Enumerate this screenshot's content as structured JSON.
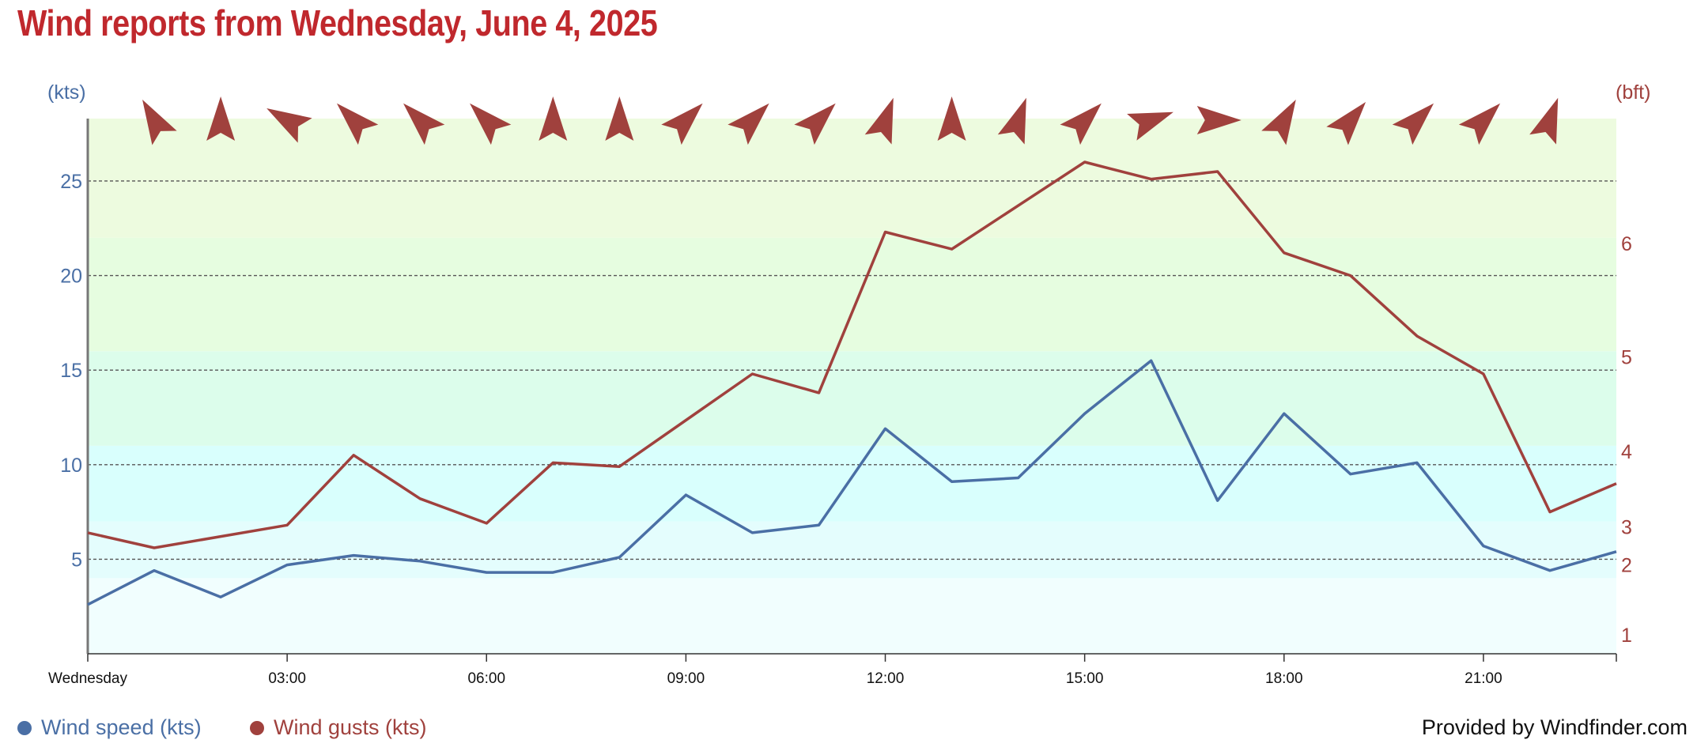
{
  "title": "Wind reports from Wednesday, June 4, 2025",
  "footer": {
    "provider": "Provided by Windfinder.com"
  },
  "legend": {
    "speed_label": "Wind speed (kts)",
    "gusts_label": "Wind gusts (kts)"
  },
  "colors": {
    "title": "#c0282d",
    "speed": "#4a6fa5",
    "gusts": "#a0413d",
    "band_bft1": "#f1fefe",
    "band_bft2": "#e4fdfd",
    "band_bft3": "#d9fffd",
    "band_bft4": "#dcfdeb",
    "band_bft5": "#e6fde0",
    "band_bft6": "#edfbdf"
  },
  "chart_data": {
    "type": "line",
    "x": [
      "00:00",
      "01:00",
      "02:00",
      "03:00",
      "04:00",
      "05:00",
      "06:00",
      "07:00",
      "08:00",
      "09:00",
      "10:00",
      "11:00",
      "12:00",
      "13:00",
      "14:00",
      "15:00",
      "16:00",
      "17:00",
      "18:00",
      "19:00",
      "20:00",
      "21:00",
      "22:00",
      "23:00"
    ],
    "series": [
      {
        "name": "Wind speed (kts)",
        "values": [
          2.6,
          4.4,
          3.0,
          4.7,
          5.2,
          4.9,
          4.3,
          4.3,
          5.1,
          8.4,
          6.4,
          6.8,
          11.9,
          9.1,
          9.3,
          12.7,
          15.5,
          8.1,
          12.7,
          9.5,
          10.1,
          5.7,
          4.4,
          5.4
        ]
      },
      {
        "name": "Wind gusts (kts)",
        "values": [
          6.4,
          5.6,
          6.2,
          6.8,
          10.5,
          8.2,
          6.9,
          10.1,
          9.9,
          null,
          14.8,
          13.8,
          22.3,
          21.4,
          null,
          26.0,
          25.1,
          25.5,
          21.2,
          20.0,
          16.8,
          14.8,
          7.5,
          9.0
        ]
      }
    ],
    "gust_line_points": [
      {
        "x": "00:00",
        "y": 6.4
      },
      {
        "x": "01:00",
        "y": 5.6
      },
      {
        "x": "03:00",
        "y": 6.8
      },
      {
        "x": "04:00",
        "y": 10.5
      },
      {
        "x": "05:00",
        "y": 8.2
      },
      {
        "x": "06:00",
        "y": 6.9
      },
      {
        "x": "07:00",
        "y": 10.1
      },
      {
        "x": "08:00",
        "y": 9.9
      },
      {
        "x": "10:00",
        "y": 14.8
      },
      {
        "x": "11:00",
        "y": 13.8
      },
      {
        "x": "12:00",
        "y": 22.3
      },
      {
        "x": "13:00",
        "y": 21.4
      },
      {
        "x": "15:00",
        "y": 26.0
      },
      {
        "x": "16:00",
        "y": 25.1
      },
      {
        "x": "17:00",
        "y": 25.5
      },
      {
        "x": "18:00",
        "y": 21.2
      },
      {
        "x": "19:00",
        "y": 20.0
      },
      {
        "x": "20:00",
        "y": 16.8
      },
      {
        "x": "21:00",
        "y": 14.8
      },
      {
        "x": "22:00",
        "y": 7.5
      },
      {
        "x": "23:00",
        "y": 9.0
      }
    ],
    "direction_degrees": [
      330,
      0,
      300,
      315,
      315,
      315,
      0,
      0,
      45,
      45,
      45,
      20,
      0,
      20,
      45,
      70,
      90,
      30,
      40,
      45,
      45,
      20
    ],
    "direction_hours": [
      1,
      2,
      3,
      4,
      5,
      6,
      7,
      8,
      9,
      10,
      11,
      12,
      13,
      14,
      15,
      16,
      17,
      18,
      19,
      20,
      21,
      22
    ],
    "x_ticks": [
      "Wednesday",
      "03:00",
      "06:00",
      "09:00",
      "12:00",
      "15:00",
      "18:00",
      "21:00"
    ],
    "y_left": {
      "unit": "(kts)",
      "ticks": [
        5,
        10,
        15,
        20,
        25
      ],
      "range": [
        0,
        28.3
      ]
    },
    "y_right": {
      "unit": "(bft)",
      "ticks": [
        1,
        2,
        3,
        4,
        5,
        6
      ]
    },
    "bft_bands_kts": [
      {
        "bft": 1,
        "from": 0,
        "to": 4
      },
      {
        "bft": 2,
        "from": 4,
        "to": 7
      },
      {
        "bft": 3,
        "from": 7,
        "to": 11
      },
      {
        "bft": 4,
        "from": 11,
        "to": 16
      },
      {
        "bft": 5,
        "from": 16,
        "to": 22
      },
      {
        "bft": 6,
        "from": 22,
        "to": 28.3
      }
    ],
    "grid": "dotted horizontal"
  }
}
